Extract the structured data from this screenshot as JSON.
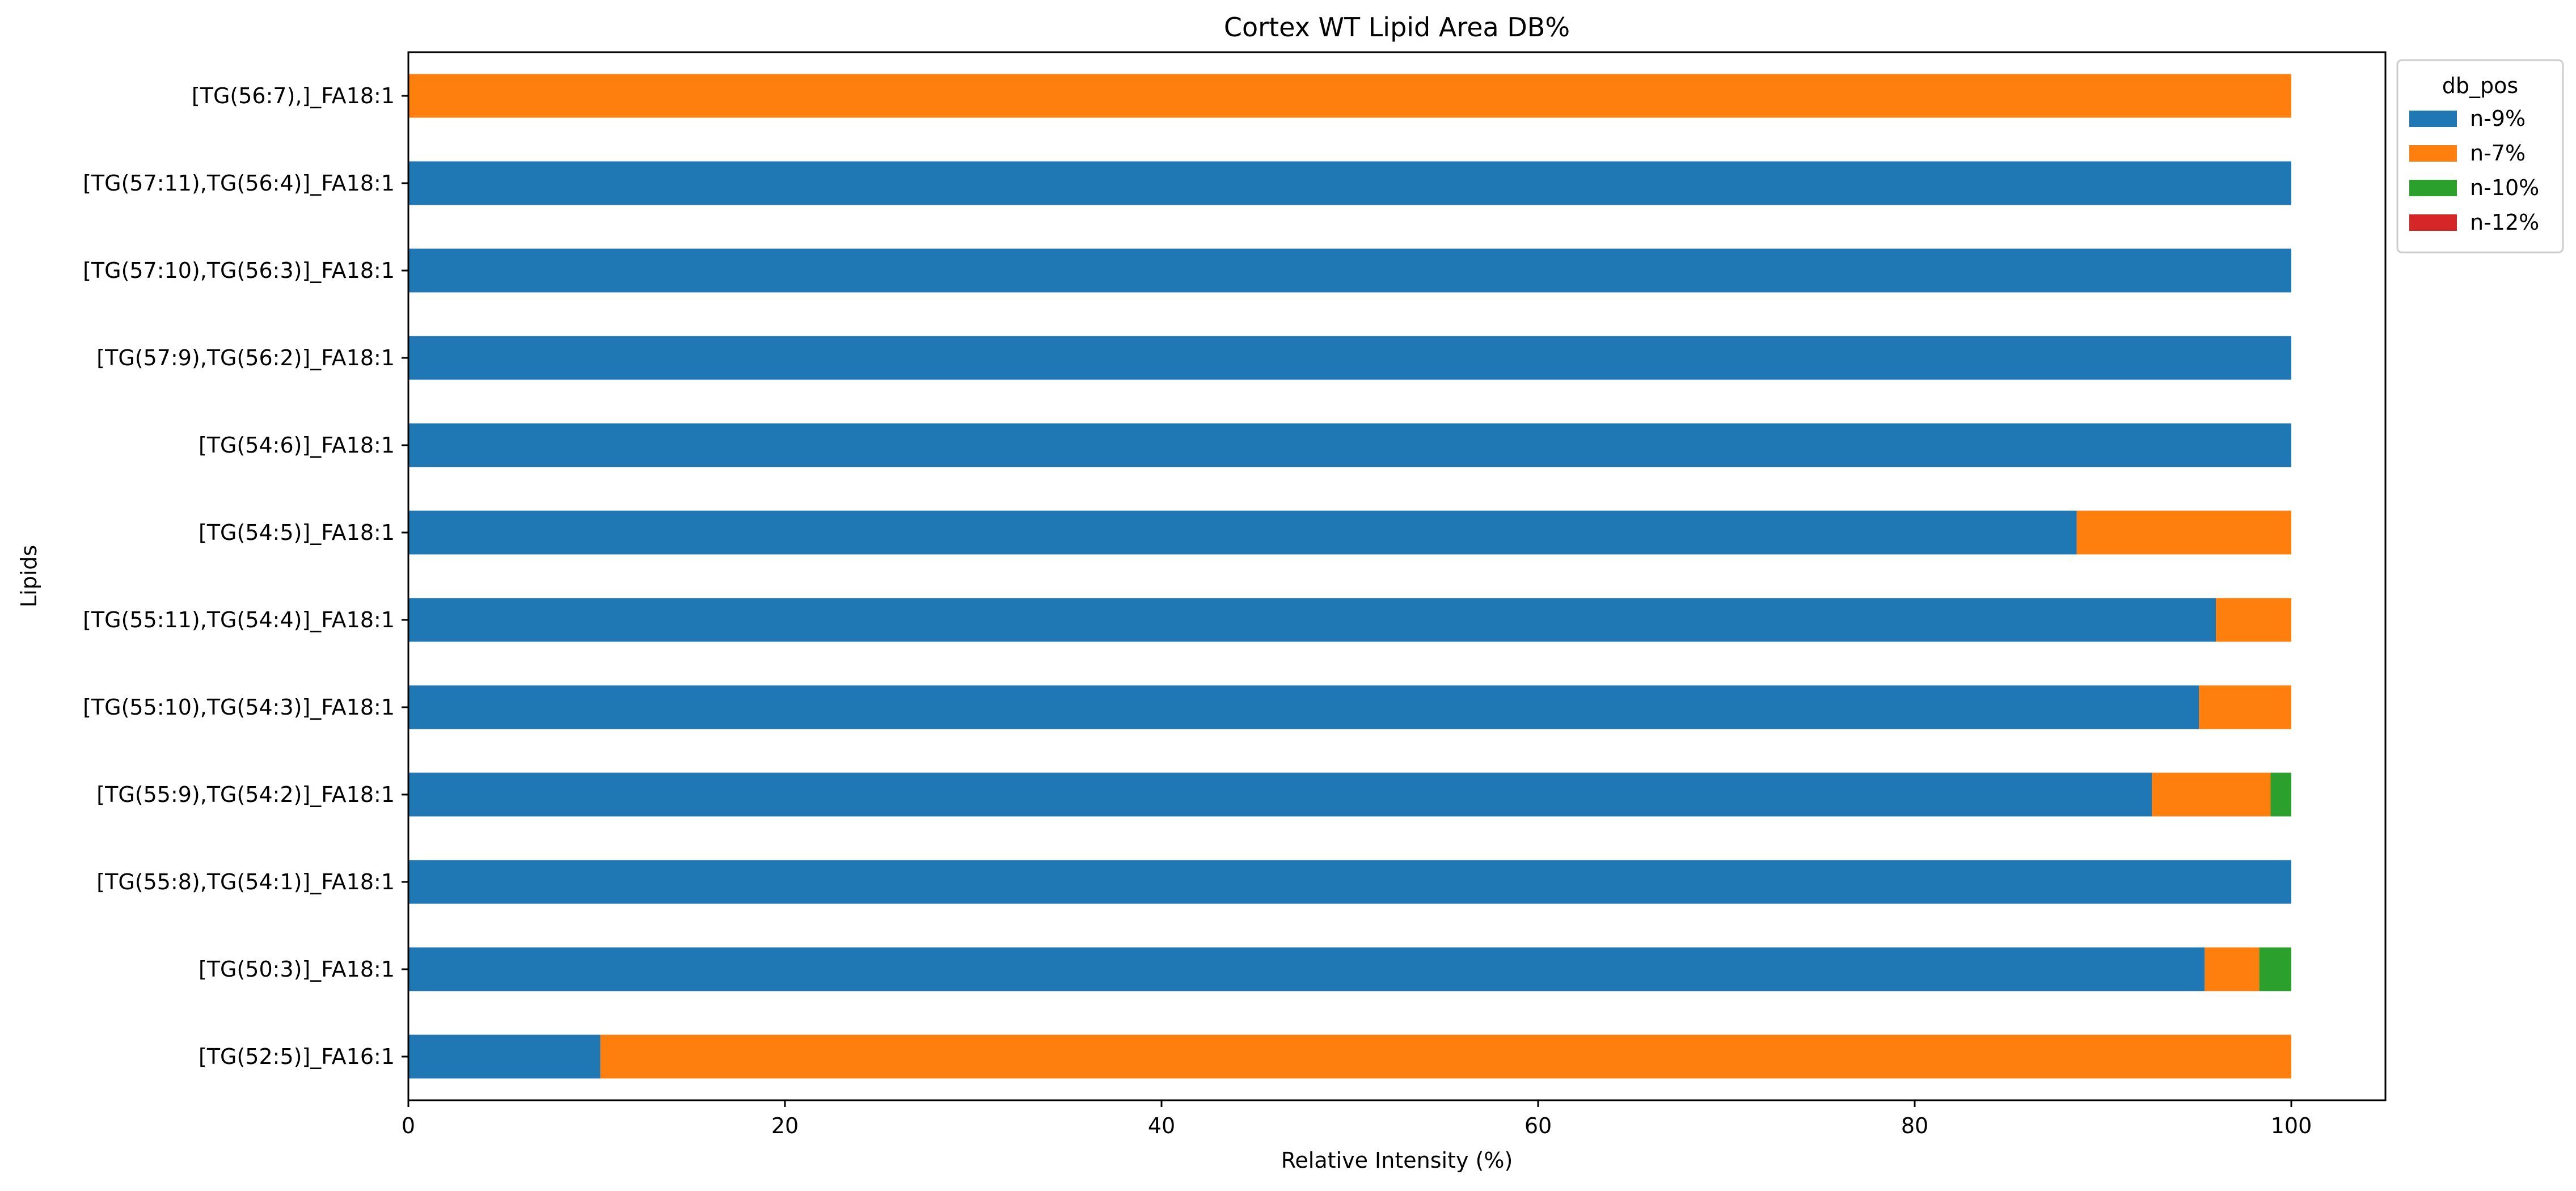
{
  "chart_data": {
    "type": "bar",
    "orientation": "horizontal",
    "stacked": true,
    "title": "Cortex WT Lipid Area DB%",
    "xlabel": "Relative Intensity (%)",
    "ylabel": "Lipids",
    "xlim": [
      0,
      105
    ],
    "xticks": [
      0,
      20,
      40,
      60,
      80,
      100
    ],
    "grid": false,
    "legend_title": "db_pos",
    "legend_position": "outside-top-right",
    "categories": [
      "[TG(56:7),]_FA18:1",
      "[TG(57:11),TG(56:4)]_FA18:1",
      "[TG(57:10),TG(56:3)]_FA18:1",
      "[TG(57:9),TG(56:2)]_FA18:1",
      "[TG(54:6)]_FA18:1",
      "[TG(54:5)]_FA18:1",
      "[TG(55:11),TG(54:4)]_FA18:1",
      "[TG(55:10),TG(54:3)]_FA18:1",
      "[TG(55:9),TG(54:2)]_FA18:1",
      "[TG(55:8),TG(54:1)]_FA18:1",
      "[TG(50:3)]_FA18:1",
      "[TG(52:5)]_FA16:1"
    ],
    "series": [
      {
        "name": "n-9%",
        "color": "#1f77b4",
        "values": [
          0,
          100,
          100,
          100,
          100,
          88.6,
          96.0,
          95.1,
          92.6,
          100,
          95.4,
          10.2
        ]
      },
      {
        "name": "n-7%",
        "color": "#ff7f0e",
        "values": [
          100,
          0,
          0,
          0,
          0,
          11.4,
          4.0,
          4.9,
          6.3,
          0,
          2.9,
          89.8
        ]
      },
      {
        "name": "n-10%",
        "color": "#2ca02c",
        "values": [
          0,
          0,
          0,
          0,
          0,
          0,
          0,
          0,
          1.1,
          0,
          1.7,
          0
        ]
      },
      {
        "name": "n-12%",
        "color": "#d62728",
        "values": [
          0,
          0,
          0,
          0,
          0,
          0,
          0,
          0,
          0,
          0,
          0,
          0
        ]
      }
    ]
  }
}
